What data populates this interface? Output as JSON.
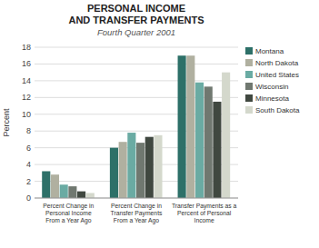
{
  "chart_data": {
    "type": "bar",
    "title": "PERSONAL INCOME\nAND TRANSFER PAYMENTS",
    "subtitle": "Fourth Quarter 2001",
    "y_label": "Percent",
    "categories": [
      "Percent Change in\nPersonal Income\nFrom a Year Ago",
      "Percent Change in\nTransfer Payments\nFrom a Year Ago",
      "Transfer Payments as a\nPercent of Personal\nIncome"
    ],
    "series": [
      {
        "name": "Montana",
        "color": "#2d7068",
        "values": [
          3.2,
          6.0,
          17.0
        ]
      },
      {
        "name": "North Dakota",
        "color": "#b0b0a0",
        "values": [
          2.8,
          6.7,
          17.0
        ]
      },
      {
        "name": "United States",
        "color": "#6aaba3",
        "values": [
          1.6,
          7.8,
          13.8
        ]
      },
      {
        "name": "Wisconsin",
        "color": "#707870",
        "values": [
          1.4,
          6.6,
          13.3
        ]
      },
      {
        "name": "Minnesota",
        "color": "#404840",
        "values": [
          0.8,
          7.3,
          11.5
        ]
      },
      {
        "name": "South Dakota",
        "color": "#d4d8cc",
        "values": [
          0.6,
          7.5,
          15.0
        ]
      }
    ],
    "ylim": [
      0,
      18
    ],
    "yticks": [
      0,
      2,
      4,
      6,
      8,
      10,
      12,
      14,
      16,
      18
    ],
    "grid": true,
    "legend": "right"
  }
}
